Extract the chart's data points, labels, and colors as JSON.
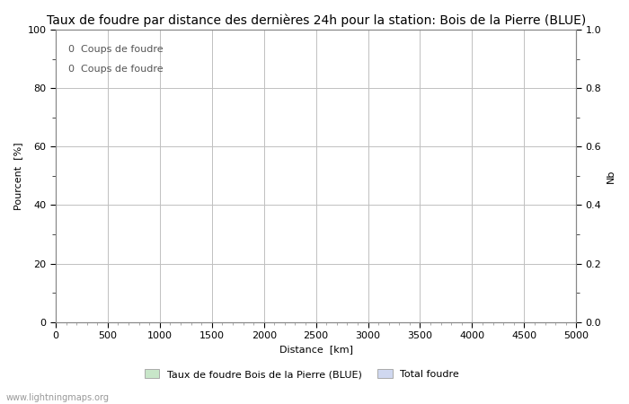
{
  "title": "Taux de foudre par distance des dernières 24h pour la station: Bois de la Pierre (BLUE)",
  "xlabel": "Distance  [km]",
  "ylabel_left": "Pourcent  [%]",
  "ylabel_right": "Nb",
  "annotation_line1": "0  Coups de foudre",
  "annotation_line2": "0  Coups de foudre",
  "xlim": [
    0,
    5000
  ],
  "ylim_left": [
    0,
    100
  ],
  "ylim_right": [
    0.0,
    1.0
  ],
  "xticks": [
    0,
    500,
    1000,
    1500,
    2000,
    2500,
    3000,
    3500,
    4000,
    4500,
    5000
  ],
  "yticks_left_major": [
    0,
    20,
    40,
    60,
    80,
    100
  ],
  "yticks_left_minor": [
    10,
    30,
    50,
    70,
    90
  ],
  "yticks_right_major": [
    0.0,
    0.2,
    0.4,
    0.6,
    0.8,
    1.0
  ],
  "yticks_right_minor": [
    0.1,
    0.3,
    0.5,
    0.7,
    0.9
  ],
  "ytick_labels_left": [
    "0",
    "20",
    "40",
    "60",
    "80",
    "100"
  ],
  "ytick_labels_right": [
    "0.0",
    "0.2",
    "0.4",
    "0.6",
    "0.8",
    "1.0"
  ],
  "grid_color": "#c0c0c0",
  "background_color": "#ffffff",
  "legend_label1": "Taux de foudre Bois de la Pierre (BLUE)",
  "legend_label2": "Total foudre",
  "legend_color1": "#c8e6c9",
  "legend_color2": "#d0d8f0",
  "watermark": "www.lightningmaps.org",
  "title_fontsize": 10,
  "axis_label_fontsize": 8,
  "tick_fontsize": 8,
  "annotation_fontsize": 8,
  "legend_fontsize": 8,
  "watermark_fontsize": 7
}
